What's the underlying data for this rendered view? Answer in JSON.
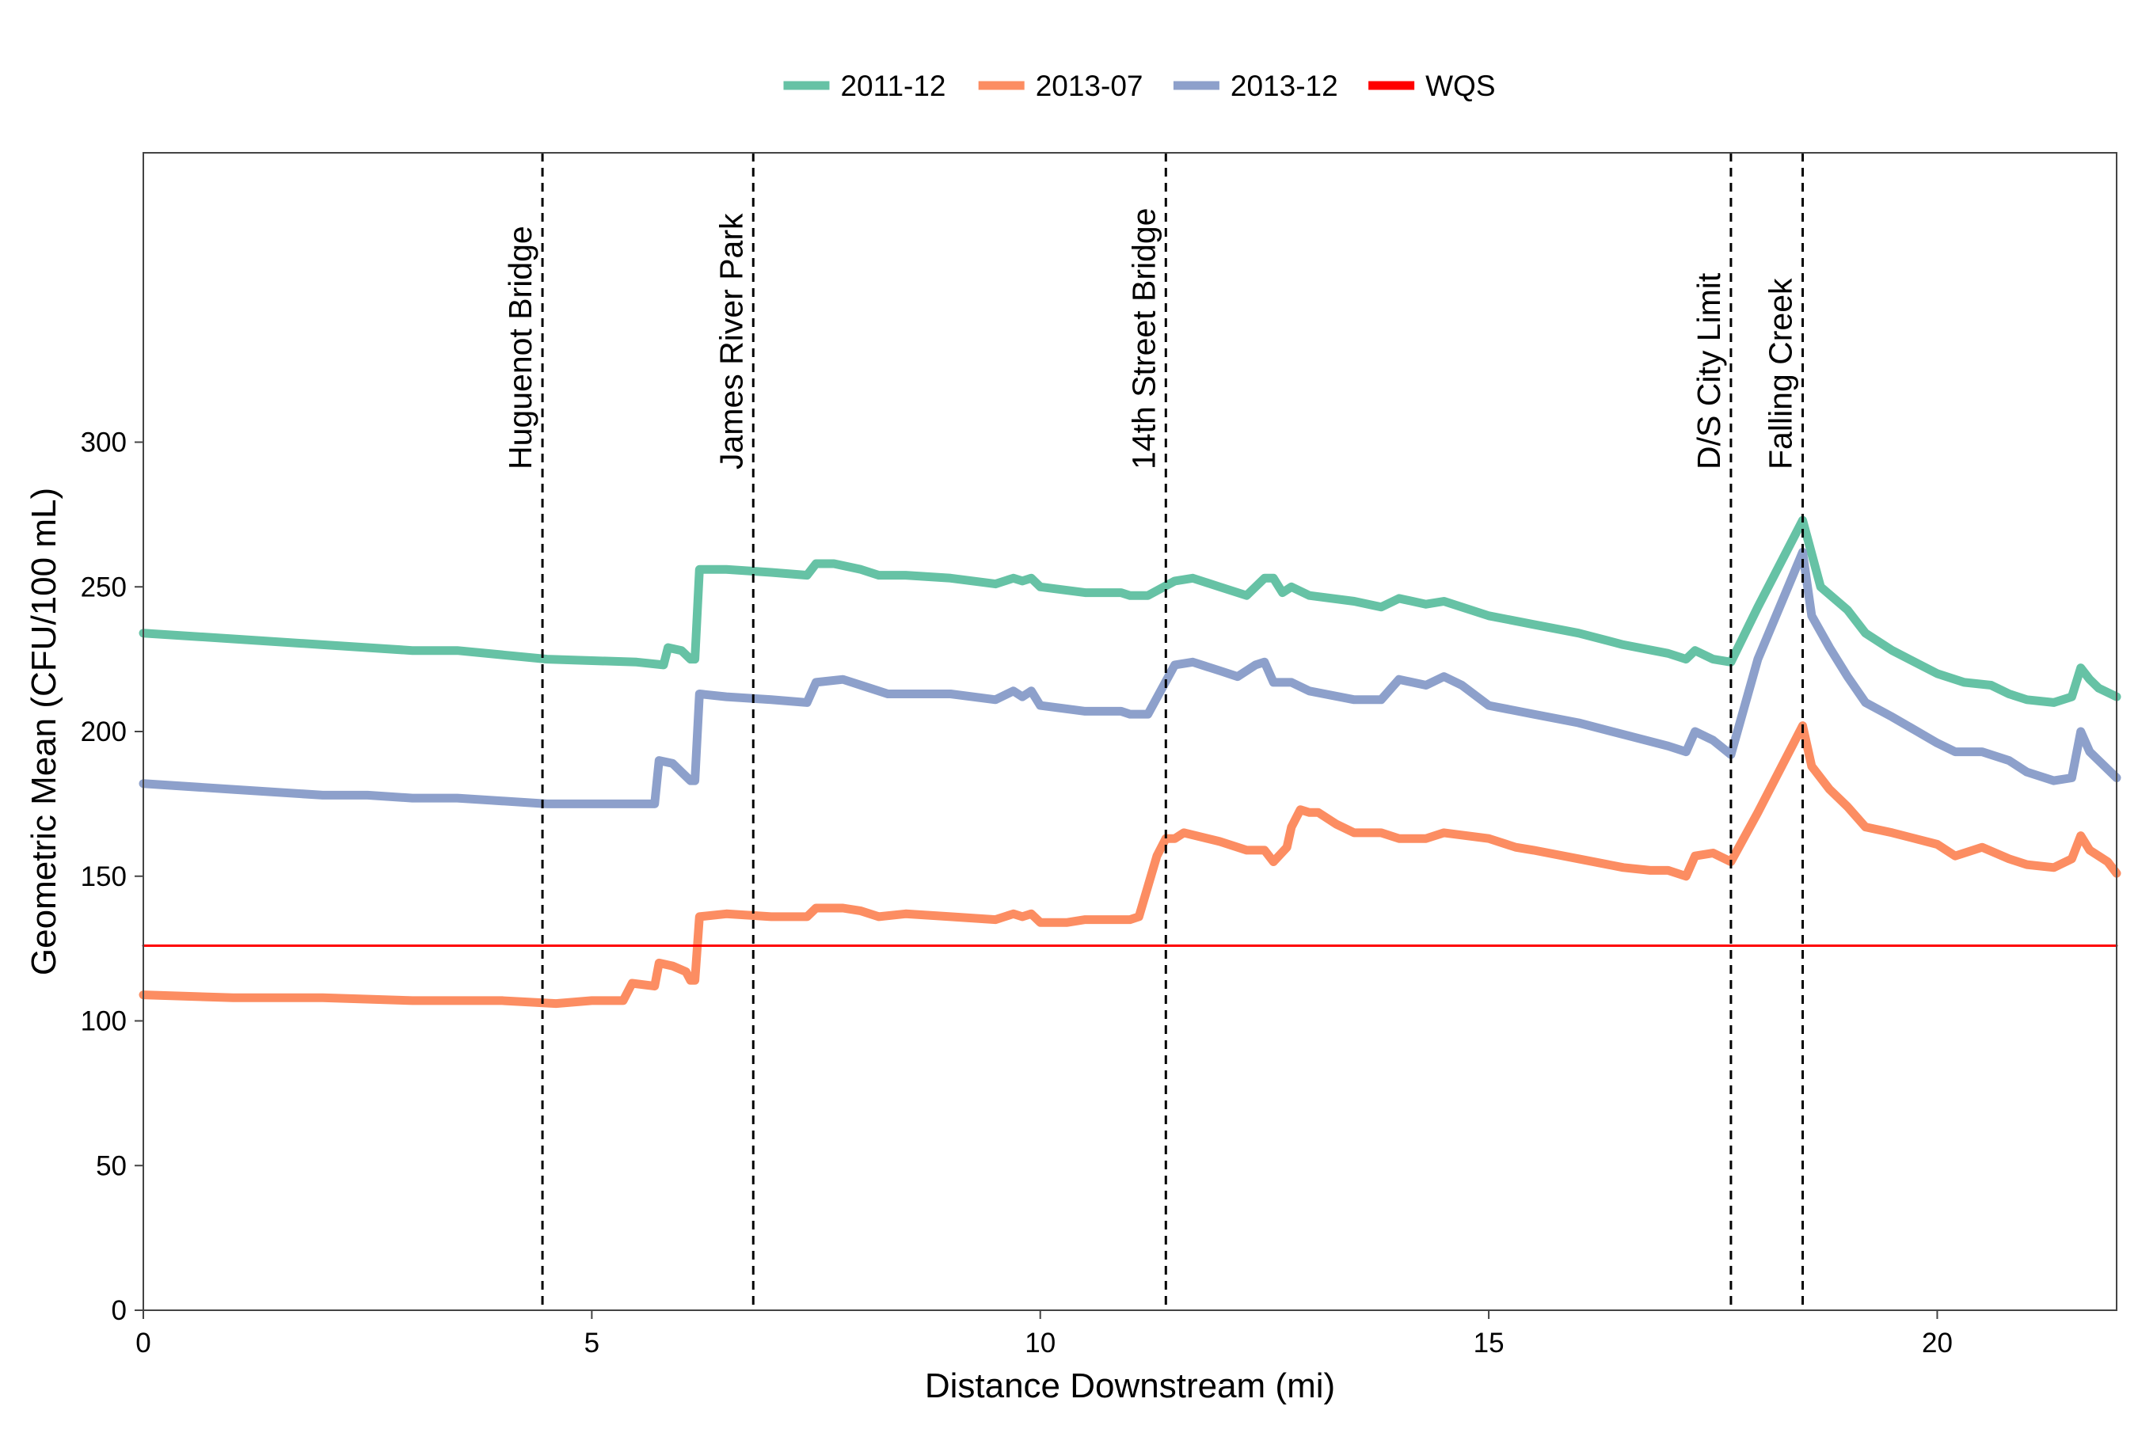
{
  "chart_data": {
    "type": "line",
    "title": "",
    "xlabel": "Distance Downstream (mi)",
    "ylabel": "Geometric Mean (CFU/100 mL)",
    "xlim": [
      0,
      22
    ],
    "ylim": [
      0,
      400
    ],
    "x_ticks": [
      0,
      5,
      10,
      15,
      20
    ],
    "y_ticks": [
      0,
      50,
      100,
      150,
      200,
      250,
      300
    ],
    "grid": false,
    "legend_position": "top",
    "series": [
      {
        "name": "2011-12",
        "color": "#66c2a5",
        "points": [
          [
            0,
            234
          ],
          [
            1,
            232
          ],
          [
            2,
            230
          ],
          [
            3,
            228
          ],
          [
            3.5,
            228
          ],
          [
            4.5,
            225
          ],
          [
            5.5,
            224
          ],
          [
            5.8,
            223
          ],
          [
            5.85,
            229
          ],
          [
            6.0,
            228
          ],
          [
            6.1,
            225
          ],
          [
            6.15,
            225
          ],
          [
            6.2,
            256
          ],
          [
            6.5,
            256
          ],
          [
            7.0,
            255
          ],
          [
            7.4,
            254
          ],
          [
            7.5,
            258
          ],
          [
            7.7,
            258
          ],
          [
            8.0,
            256
          ],
          [
            8.2,
            254
          ],
          [
            8.5,
            254
          ],
          [
            9.0,
            253
          ],
          [
            9.5,
            251
          ],
          [
            9.7,
            253
          ],
          [
            9.8,
            252
          ],
          [
            9.9,
            253
          ],
          [
            10.0,
            250
          ],
          [
            10.5,
            248
          ],
          [
            10.9,
            248
          ],
          [
            11.0,
            247
          ],
          [
            11.2,
            247
          ],
          [
            11.5,
            252
          ],
          [
            11.7,
            253
          ],
          [
            12.0,
            250
          ],
          [
            12.3,
            247
          ],
          [
            12.5,
            253
          ],
          [
            12.6,
            253
          ],
          [
            12.7,
            248
          ],
          [
            12.8,
            250
          ],
          [
            13.0,
            247
          ],
          [
            13.5,
            245
          ],
          [
            13.8,
            243
          ],
          [
            14.0,
            246
          ],
          [
            14.3,
            244
          ],
          [
            14.5,
            245
          ],
          [
            15.0,
            240
          ],
          [
            15.5,
            237
          ],
          [
            16.0,
            234
          ],
          [
            16.5,
            230
          ],
          [
            17.0,
            227
          ],
          [
            17.2,
            225
          ],
          [
            17.3,
            228
          ],
          [
            17.5,
            225
          ],
          [
            17.7,
            224
          ],
          [
            18.0,
            243
          ],
          [
            18.5,
            273
          ],
          [
            18.7,
            250
          ],
          [
            19.0,
            242
          ],
          [
            19.2,
            234
          ],
          [
            19.5,
            228
          ],
          [
            20.0,
            220
          ],
          [
            20.3,
            217
          ],
          [
            20.6,
            216
          ],
          [
            20.8,
            213
          ],
          [
            21.0,
            211
          ],
          [
            21.3,
            210
          ],
          [
            21.5,
            212
          ],
          [
            21.6,
            222
          ],
          [
            21.7,
            218
          ],
          [
            21.8,
            215
          ],
          [
            22.0,
            212
          ]
        ]
      },
      {
        "name": "2013-07",
        "color": "#fc8d62",
        "points": [
          [
            0,
            109
          ],
          [
            1,
            108
          ],
          [
            2,
            108
          ],
          [
            3,
            107
          ],
          [
            4,
            107
          ],
          [
            4.6,
            106
          ],
          [
            5.0,
            107
          ],
          [
            5.35,
            107
          ],
          [
            5.45,
            113
          ],
          [
            5.7,
            112
          ],
          [
            5.75,
            120
          ],
          [
            5.9,
            119
          ],
          [
            6.05,
            117
          ],
          [
            6.1,
            114
          ],
          [
            6.15,
            114
          ],
          [
            6.2,
            136
          ],
          [
            6.5,
            137
          ],
          [
            7.0,
            136
          ],
          [
            7.4,
            136
          ],
          [
            7.5,
            139
          ],
          [
            7.8,
            139
          ],
          [
            8.0,
            138
          ],
          [
            8.2,
            136
          ],
          [
            8.5,
            137
          ],
          [
            9.0,
            136
          ],
          [
            9.5,
            135
          ],
          [
            9.7,
            137
          ],
          [
            9.8,
            136
          ],
          [
            9.9,
            137
          ],
          [
            10.0,
            134
          ],
          [
            10.3,
            134
          ],
          [
            10.5,
            135
          ],
          [
            11.0,
            135
          ],
          [
            11.1,
            136
          ],
          [
            11.3,
            157
          ],
          [
            11.4,
            163
          ],
          [
            11.5,
            163
          ],
          [
            11.6,
            165
          ],
          [
            12.0,
            162
          ],
          [
            12.3,
            159
          ],
          [
            12.5,
            159
          ],
          [
            12.6,
            155
          ],
          [
            12.75,
            160
          ],
          [
            12.8,
            167
          ],
          [
            12.9,
            173
          ],
          [
            13.0,
            172
          ],
          [
            13.1,
            172
          ],
          [
            13.3,
            168
          ],
          [
            13.5,
            165
          ],
          [
            13.8,
            165
          ],
          [
            14.0,
            163
          ],
          [
            14.3,
            163
          ],
          [
            14.5,
            165
          ],
          [
            15.0,
            163
          ],
          [
            15.3,
            160
          ],
          [
            15.5,
            159
          ],
          [
            16.0,
            156
          ],
          [
            16.5,
            153
          ],
          [
            16.8,
            152
          ],
          [
            17.0,
            152
          ],
          [
            17.2,
            150
          ],
          [
            17.3,
            157
          ],
          [
            17.5,
            158
          ],
          [
            17.7,
            155
          ],
          [
            18.0,
            172
          ],
          [
            18.5,
            202
          ],
          [
            18.6,
            188
          ],
          [
            18.8,
            180
          ],
          [
            19.0,
            174
          ],
          [
            19.2,
            167
          ],
          [
            19.5,
            165
          ],
          [
            20.0,
            161
          ],
          [
            20.2,
            157
          ],
          [
            20.5,
            160
          ],
          [
            20.8,
            156
          ],
          [
            21.0,
            154
          ],
          [
            21.3,
            153
          ],
          [
            21.5,
            156
          ],
          [
            21.6,
            164
          ],
          [
            21.7,
            159
          ],
          [
            21.9,
            155
          ],
          [
            22.0,
            151
          ]
        ]
      },
      {
        "name": "2013-12",
        "color": "#8da0cb",
        "points": [
          [
            0,
            182
          ],
          [
            1,
            180
          ],
          [
            2,
            178
          ],
          [
            2.5,
            178
          ],
          [
            3,
            177
          ],
          [
            3.5,
            177
          ],
          [
            4.0,
            176
          ],
          [
            4.5,
            175
          ],
          [
            5.0,
            175
          ],
          [
            5.5,
            175
          ],
          [
            5.7,
            175
          ],
          [
            5.75,
            190
          ],
          [
            5.9,
            189
          ],
          [
            6.0,
            186
          ],
          [
            6.1,
            183
          ],
          [
            6.15,
            183
          ],
          [
            6.2,
            213
          ],
          [
            6.5,
            212
          ],
          [
            7.0,
            211
          ],
          [
            7.4,
            210
          ],
          [
            7.5,
            217
          ],
          [
            7.8,
            218
          ],
          [
            8.0,
            216
          ],
          [
            8.3,
            213
          ],
          [
            8.5,
            213
          ],
          [
            9.0,
            213
          ],
          [
            9.5,
            211
          ],
          [
            9.7,
            214
          ],
          [
            9.8,
            212
          ],
          [
            9.9,
            214
          ],
          [
            10.0,
            209
          ],
          [
            10.5,
            207
          ],
          [
            10.9,
            207
          ],
          [
            11.0,
            206
          ],
          [
            11.2,
            206
          ],
          [
            11.5,
            223
          ],
          [
            11.7,
            224
          ],
          [
            12.0,
            221
          ],
          [
            12.2,
            219
          ],
          [
            12.4,
            223
          ],
          [
            12.5,
            224
          ],
          [
            12.6,
            217
          ],
          [
            12.8,
            217
          ],
          [
            13.0,
            214
          ],
          [
            13.5,
            211
          ],
          [
            13.8,
            211
          ],
          [
            14.0,
            218
          ],
          [
            14.3,
            216
          ],
          [
            14.5,
            219
          ],
          [
            14.7,
            216
          ],
          [
            15.0,
            209
          ],
          [
            15.5,
            206
          ],
          [
            16.0,
            203
          ],
          [
            16.5,
            199
          ],
          [
            17.0,
            195
          ],
          [
            17.2,
            193
          ],
          [
            17.3,
            200
          ],
          [
            17.5,
            197
          ],
          [
            17.7,
            192
          ],
          [
            18.0,
            225
          ],
          [
            18.5,
            262
          ],
          [
            18.6,
            240
          ],
          [
            18.8,
            229
          ],
          [
            19.0,
            219
          ],
          [
            19.2,
            210
          ],
          [
            19.5,
            205
          ],
          [
            20.0,
            196
          ],
          [
            20.2,
            193
          ],
          [
            20.5,
            193
          ],
          [
            20.8,
            190
          ],
          [
            21.0,
            186
          ],
          [
            21.3,
            183
          ],
          [
            21.5,
            184
          ],
          [
            21.6,
            200
          ],
          [
            21.7,
            193
          ],
          [
            21.8,
            190
          ],
          [
            22.0,
            184
          ]
        ]
      },
      {
        "name": "WQS",
        "color": "#ff0000",
        "points": [
          [
            0,
            126
          ],
          [
            22,
            126
          ]
        ]
      }
    ],
    "vlines": [
      {
        "x": 4.45,
        "label": "Huguenot Bridge"
      },
      {
        "x": 6.8,
        "label": "James River Park"
      },
      {
        "x": 11.4,
        "label": "14th Street Bridge"
      },
      {
        "x": 17.7,
        "label": "D/S City Limit"
      },
      {
        "x": 18.5,
        "label": "Falling Creek"
      }
    ]
  }
}
